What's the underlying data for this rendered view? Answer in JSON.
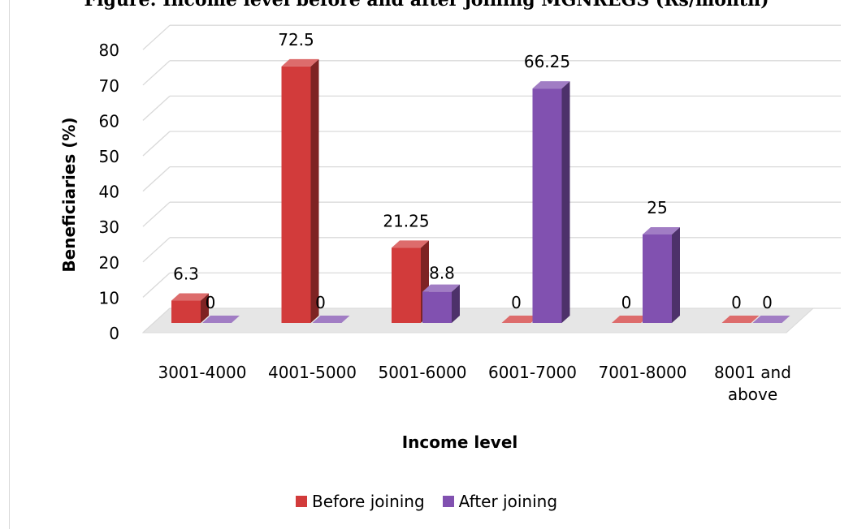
{
  "title": "Figure: Income level before and after joining MGNREGS (Rs/month)",
  "chart_data": {
    "type": "bar",
    "xlabel": "Income level",
    "ylabel": "Beneficiaries (%)",
    "ylim": [
      0,
      80
    ],
    "yticks": [
      0,
      10,
      20,
      30,
      40,
      50,
      60,
      70,
      80
    ],
    "grid": true,
    "legend_position": "bottom",
    "categories": [
      "3001-4000",
      "4001-5000",
      "5001-6000",
      "6001-7000",
      "7001-8000",
      "8001 and above"
    ],
    "series": [
      {
        "name": "Before joining",
        "color": "#d23b3b",
        "values": [
          6.3,
          72.5,
          21.25,
          0,
          0,
          0
        ],
        "labels": [
          "6.3",
          "72.5",
          "21.25",
          "0",
          "0",
          "0"
        ]
      },
      {
        "name": "After joining",
        "color": "#8151b0",
        "values": [
          0,
          0,
          8.8,
          66.25,
          25,
          0
        ],
        "labels": [
          "0",
          "0",
          "8.8",
          "66.25",
          "25",
          "0"
        ]
      }
    ]
  }
}
